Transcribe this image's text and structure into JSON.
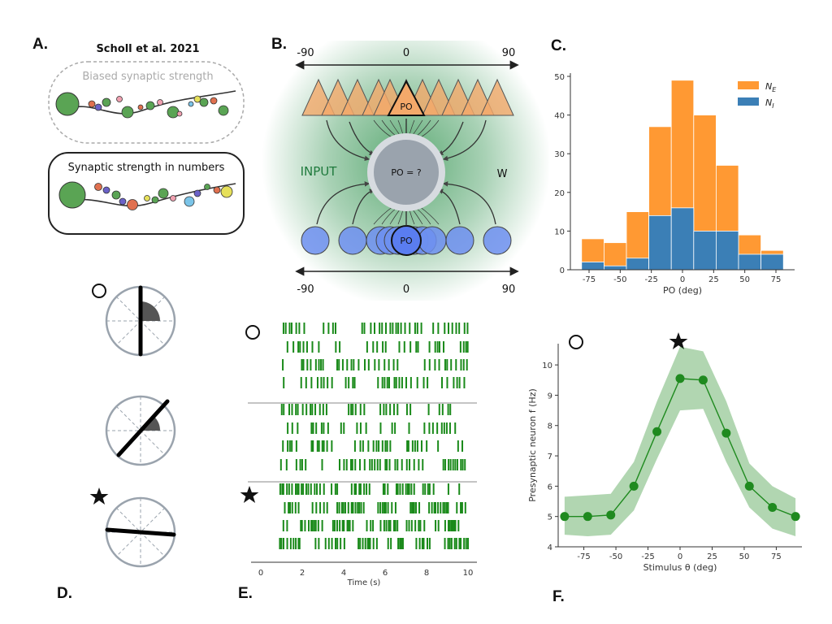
{
  "panel_letters": {
    "a": "A.",
    "b": "B.",
    "c": "C.",
    "d": "D.",
    "e": "E.",
    "f": "F."
  },
  "panel_a": {
    "title": "Scholl et al. 2021",
    "box1_label": "Biased synaptic strength",
    "box2_label": "Synaptic strength in numbers"
  },
  "panel_b": {
    "top_labels": [
      "-90",
      "0",
      "90"
    ],
    "bottom_labels": [
      "-90",
      "0",
      "90"
    ],
    "exc_po_label": "PO",
    "inh_po_label": "PO",
    "center_label": "PO = ?",
    "input_label": "INPUT",
    "w_label": "W",
    "colors": {
      "excitatory": "#f4a96a",
      "inhibitory": "#6d8ff0",
      "center": "#9aa3ad",
      "glow": "#3f9a5b"
    }
  },
  "chart_data": [
    {
      "type": "bar",
      "panel": "C",
      "xlabel": "PO (deg)",
      "ylabel": "",
      "ylim": [
        0,
        50
      ],
      "xlim": [
        -90,
        90
      ],
      "x_ticks": [
        -75,
        -50,
        -25,
        0,
        25,
        50,
        75
      ],
      "y_ticks": [
        0,
        10,
        20,
        30,
        40,
        50
      ],
      "bin_edges": [
        -81,
        -63,
        -45,
        -27,
        -9,
        9,
        27,
        45,
        63,
        81
      ],
      "legend_position": "top-right",
      "series": [
        {
          "name": "N_E",
          "legend_main": "N",
          "legend_sub": "E",
          "color": "#ff9933",
          "values": [
            8,
            7,
            15,
            37,
            49,
            40,
            27,
            9,
            5
          ]
        },
        {
          "name": "N_I",
          "legend_main": "N",
          "legend_sub": "I",
          "color": "#3b7fb6",
          "values": [
            2,
            1,
            3,
            14,
            16,
            10,
            10,
            4,
            4
          ]
        }
      ]
    },
    {
      "type": "line",
      "panel": "F",
      "xlabel": "Stimulus θ (deg)",
      "ylabel": "Presynaptic neuron f (Hz)",
      "xlim": [
        -95,
        95
      ],
      "ylim": [
        4,
        10.7
      ],
      "x_ticks": [
        -75,
        -50,
        -25,
        0,
        25,
        50,
        75
      ],
      "y_ticks": [
        4,
        5,
        6,
        7,
        8,
        9,
        10
      ],
      "series": [
        {
          "name": "",
          "color": "#1f8a1f",
          "x": [
            -90,
            -72,
            -54,
            -36,
            -18,
            0,
            18,
            36,
            54,
            72,
            90
          ],
          "y": [
            5.0,
            5.0,
            5.05,
            6.0,
            7.8,
            9.55,
            9.5,
            7.75,
            6.0,
            5.3,
            5.0
          ],
          "band_upper": [
            5.65,
            5.7,
            5.75,
            6.8,
            8.8,
            10.6,
            10.45,
            8.8,
            6.75,
            6.0,
            5.6
          ],
          "band_lower": [
            4.4,
            4.35,
            4.4,
            5.2,
            6.9,
            8.5,
            8.55,
            6.8,
            5.3,
            4.6,
            4.35
          ]
        }
      ]
    }
  ],
  "panel_e": {
    "x_ticks": [
      "0",
      "2",
      "4",
      "6",
      "8",
      "10"
    ],
    "xlabel": "Time (s)",
    "raster_color": "#1a8a1a"
  },
  "symbols": {
    "circle": "circle-icon",
    "moon": "moon-icon",
    "star": "star-icon"
  }
}
